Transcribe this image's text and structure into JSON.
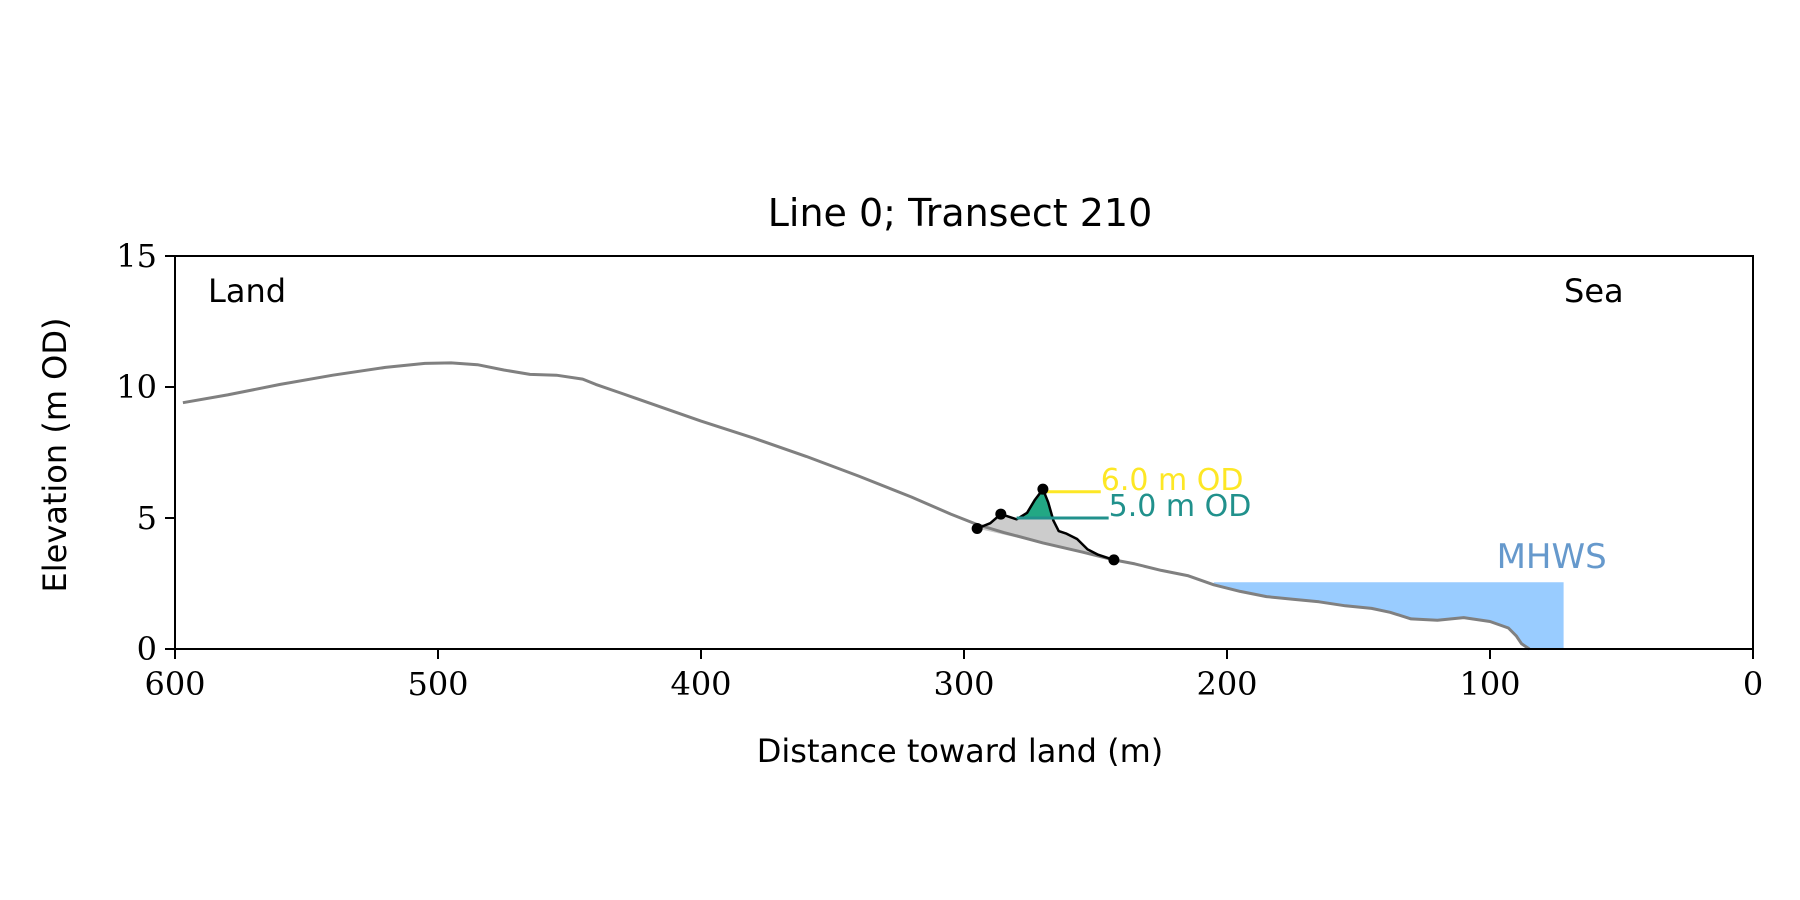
{
  "chart_data": {
    "type": "line",
    "title": "Line 0; Transect 210",
    "xlabel": "Distance toward land (m)",
    "ylabel": "Elevation (m OD)",
    "xlim": [
      600,
      0
    ],
    "ylim": [
      0,
      15
    ],
    "x_ticks": [
      600,
      500,
      400,
      300,
      200,
      100,
      0
    ],
    "y_ticks": [
      0,
      5,
      10,
      15
    ],
    "grid": false,
    "corner_labels": {
      "left": "Land",
      "right": "Sea"
    },
    "colors": {
      "profile": "#808080",
      "dune": "#000000",
      "dune_fill": "#22a884",
      "base_fill": "#cccccc",
      "mhws_fill": "#99ccff",
      "mhws_text": "#6699cc",
      "level_6": "#fde725",
      "level_5": "#21918c"
    },
    "profile": {
      "x": [
        597,
        580,
        560,
        540,
        520,
        505,
        495,
        485,
        475,
        465,
        455,
        445,
        440,
        430,
        420,
        400,
        380,
        360,
        340,
        320,
        305,
        295,
        285,
        270,
        255,
        243,
        235,
        225,
        215,
        205,
        195,
        185,
        175,
        165,
        155,
        145,
        138,
        130,
        120,
        110,
        100,
        93,
        90,
        88,
        85
      ],
      "y": [
        9.4,
        9.7,
        10.1,
        10.45,
        10.75,
        10.9,
        10.92,
        10.85,
        10.65,
        10.48,
        10.45,
        10.3,
        10.1,
        9.75,
        9.4,
        8.7,
        8.05,
        7.35,
        6.6,
        5.8,
        5.15,
        4.75,
        4.45,
        4.05,
        3.7,
        3.4,
        3.25,
        3.0,
        2.8,
        2.45,
        2.2,
        2.0,
        1.9,
        1.8,
        1.65,
        1.55,
        1.4,
        1.15,
        1.1,
        1.2,
        1.05,
        0.8,
        0.5,
        0.2,
        0.0
      ]
    },
    "dune": {
      "x": [
        295,
        290,
        286,
        283,
        280,
        276,
        273,
        270,
        268,
        266,
        264,
        261,
        257,
        253,
        249,
        246,
        243
      ],
      "y": [
        4.6,
        4.8,
        5.15,
        5.05,
        4.95,
        5.2,
        5.7,
        6.1,
        5.6,
        4.9,
        4.5,
        4.4,
        4.2,
        3.8,
        3.6,
        3.5,
        3.4
      ]
    },
    "dune_points": {
      "x": [
        295,
        286,
        270,
        243
      ],
      "y": [
        4.6,
        5.15,
        6.1,
        3.4
      ]
    },
    "levels": [
      {
        "label": "6.0 m OD",
        "y": 6.0,
        "x_start": 270,
        "x_end": 248
      },
      {
        "label": "5.0 m OD",
        "y": 5.0,
        "x_start": 280,
        "x_end": 245
      }
    ],
    "mhws": {
      "label": "MHWS",
      "level": 2.55,
      "x_start": 205,
      "x_end": 72
    }
  }
}
